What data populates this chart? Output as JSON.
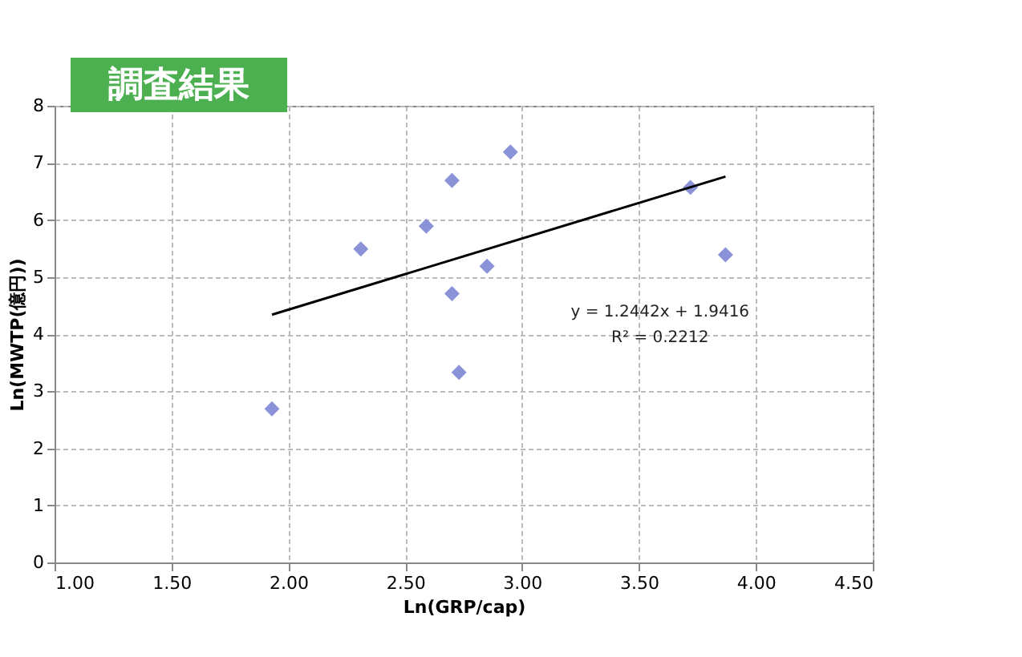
{
  "chart_data": {
    "type": "scatter",
    "title": "調査結果",
    "xlabel": "Ln(GRP/cap)",
    "ylabel": "Ln(MWTP(億円))",
    "xlim": [
      1.0,
      4.5
    ],
    "xticks": [
      {
        "value": 1.0,
        "label": "1.00"
      },
      {
        "value": 1.5,
        "label": "1.50"
      },
      {
        "value": 2.0,
        "label": "2.00"
      },
      {
        "value": 2.5,
        "label": "2.50"
      },
      {
        "value": 3.0,
        "label": "3.00"
      },
      {
        "value": 3.5,
        "label": "3.50"
      },
      {
        "value": 4.0,
        "label": "4.00"
      },
      {
        "value": 4.5,
        "label": "4.50"
      }
    ],
    "ylim": [
      0,
      8
    ],
    "yticks": [
      0,
      1,
      2,
      3,
      4,
      5,
      6,
      7,
      8
    ],
    "grid": true,
    "marker": "diamond",
    "series": [
      {
        "color": "#8b93d8",
        "x": [
          1.93,
          2.31,
          2.59,
          2.7,
          2.7,
          2.73,
          2.85,
          2.95,
          3.72,
          3.87
        ],
        "values": [
          2.69,
          5.49,
          5.89,
          6.69,
          4.71,
          3.33,
          5.19,
          7.19,
          6.57,
          5.39
        ]
      },
      {
        "type": "line",
        "marker": "none",
        "color": "#000000",
        "line_style": "solid",
        "x": [
          1.93,
          3.87
        ],
        "values": [
          4.34,
          6.76
        ]
      }
    ],
    "annotations": [
      "y = 1.2442x + 1.9416",
      "R² = 0.2212"
    ]
  }
}
